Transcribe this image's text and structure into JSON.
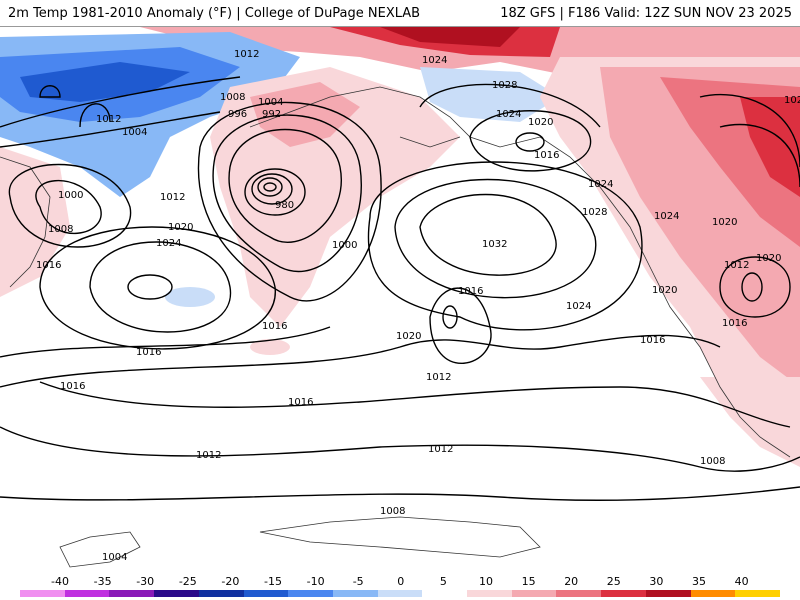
{
  "header": {
    "left": "2m Temp 1981-2010 Anomaly (°F) | College of DuPage NEXLAB",
    "right": "18Z GFS | F186 Valid: 12Z SUN NOV 23 2025"
  },
  "colors": {
    "cold_strong": "#1f3fbf",
    "cold_mid": "#4a78e0",
    "cold_light": "#bcd3f4",
    "warm_light": "#f6c9cf",
    "warm_mid": "#ef6f7c",
    "warm_strong": "#d4142a",
    "warm_dark": "#a3001a",
    "contour": "#000000"
  },
  "colorbar": {
    "ticks": [
      "-40",
      "-35",
      "-30",
      "-25",
      "-20",
      "-15",
      "-10",
      "-5",
      "0",
      "5",
      "10",
      "15",
      "20",
      "25",
      "30",
      "35",
      "40"
    ],
    "swatches": [
      "#f08ef0",
      "#c030e0",
      "#8a1ab8",
      "#2a0a8a",
      "#1030a0",
      "#1f5ad0",
      "#4a86f0",
      "#88b8f6",
      "#c9ddf8",
      "#ffffff",
      "#f9d7da",
      "#f4a9b1",
      "#ec7480",
      "#dc3040",
      "#b01020",
      "#ff8c00",
      "#ffd000"
    ]
  },
  "isobars": [
    {
      "text": "1012"
    },
    {
      "text": "1008"
    },
    {
      "text": "1004"
    },
    {
      "text": "996"
    },
    {
      "text": "992"
    },
    {
      "text": "1012"
    },
    {
      "text": "1004"
    },
    {
      "text": "980"
    },
    {
      "text": "1000"
    },
    {
      "text": "1008"
    },
    {
      "text": "1016"
    },
    {
      "text": "1012"
    },
    {
      "text": "1020"
    },
    {
      "text": "1024"
    },
    {
      "text": "1000"
    },
    {
      "text": "1024"
    },
    {
      "text": "1028"
    },
    {
      "text": "1024"
    },
    {
      "text": "1020"
    },
    {
      "text": "1016"
    },
    {
      "text": "1024"
    },
    {
      "text": "1028"
    },
    {
      "text": "1032"
    },
    {
      "text": "1024"
    },
    {
      "text": "1016"
    },
    {
      "text": "1016"
    },
    {
      "text": "1020"
    },
    {
      "text": "1024"
    },
    {
      "text": "1020"
    },
    {
      "text": "1012"
    },
    {
      "text": "1020"
    },
    {
      "text": "1016"
    },
    {
      "text": "1016"
    },
    {
      "text": "1016"
    },
    {
      "text": "1016"
    },
    {
      "text": "1012"
    },
    {
      "text": "1012"
    },
    {
      "text": "1012"
    },
    {
      "text": "1008"
    },
    {
      "text": "1008"
    },
    {
      "text": "1004"
    },
    {
      "text": "1024"
    },
    {
      "text": "1020"
    },
    {
      "text": "1016"
    }
  ]
}
